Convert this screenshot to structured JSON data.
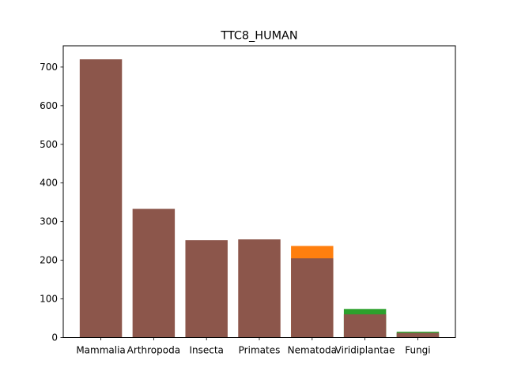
{
  "chart_data": {
    "type": "bar",
    "title": "TTC8_HUMAN",
    "categories": [
      "Mammalia",
      "Arthropoda",
      "Insecta",
      "Primates",
      "Nematoda",
      "Viridiplantae",
      "Fungi"
    ],
    "ylim": [
      0,
      755
    ],
    "yticks": [
      0,
      100,
      200,
      300,
      400,
      500,
      600,
      700
    ],
    "series": [
      {
        "color": "#ff7f0e",
        "values": [
          0,
          0,
          0,
          0,
          237,
          0,
          0
        ]
      },
      {
        "color": "#2ca02c",
        "values": [
          0,
          0,
          0,
          0,
          0,
          74,
          15
        ]
      },
      {
        "color": "#8c564b",
        "values": [
          720,
          333,
          252,
          254,
          205,
          60,
          12
        ]
      }
    ],
    "xlabel": "",
    "ylabel": "",
    "grid": false,
    "legend": "none"
  }
}
